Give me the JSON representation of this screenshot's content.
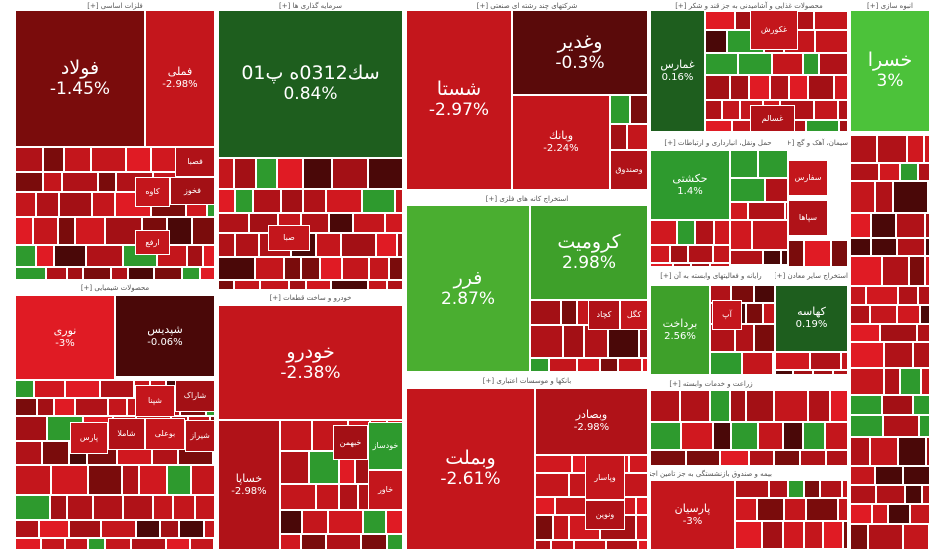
{
  "sectors": [
    {
      "header": "فلزات اساسی [+]",
      "tiles": [
        {
          "symbol": "فولاد",
          "change": "-1.45%"
        },
        {
          "symbol": "فملی",
          "change": "-2.98%"
        },
        {
          "symbol": "فصبا"
        },
        {
          "symbol": "کاوه"
        },
        {
          "symbol": "فخوز"
        },
        {
          "symbol": "ارفع"
        }
      ]
    },
    {
      "header": "محصولات شیمیایی [+]",
      "tiles": [
        {
          "symbol": "نوری",
          "change": "-3%"
        },
        {
          "symbol": "شپدیس",
          "change": "-0.06%"
        },
        {
          "symbol": "شاراک"
        },
        {
          "symbol": "شپنا"
        },
        {
          "symbol": "بوعلی"
        },
        {
          "symbol": "شیراز"
        },
        {
          "symbol": "پارس"
        },
        {
          "symbol": "شاملا"
        }
      ]
    },
    {
      "header": "سرمایه گذاری ها [+]",
      "tiles": [
        {
          "symbol": "سك0312ه پ01",
          "change": "0.84%"
        },
        {
          "symbol": "صبا"
        }
      ]
    },
    {
      "header": "خودرو و ساخت قطعات [+]",
      "tiles": [
        {
          "symbol": "خودرو",
          "change": "-2.38%"
        },
        {
          "symbol": "خساپا",
          "change": "-2.98%"
        },
        {
          "symbol": "خودساز"
        },
        {
          "symbol": "خاور"
        },
        {
          "symbol": "خبهمن"
        }
      ]
    },
    {
      "header": "شرکتهای چند رشته ای صنعتی [+]",
      "tiles": [
        {
          "symbol": "شستا",
          "change": "-2.97%"
        },
        {
          "symbol": "وغدیر",
          "change": "-0.3%"
        },
        {
          "symbol": "وبانك",
          "change": "-2.24%"
        },
        {
          "symbol": "وصندوق"
        }
      ]
    },
    {
      "header": "استخراج کانه های فلزی [+]",
      "tiles": [
        {
          "symbol": "فرر",
          "change": "2.87%"
        },
        {
          "symbol": "کرومیت",
          "change": "2.98%"
        },
        {
          "symbol": "کگل"
        },
        {
          "symbol": "کچاد"
        }
      ]
    },
    {
      "header": "بانکها و موسسات اعتباری [+]",
      "tiles": [
        {
          "symbol": "وبملت",
          "change": "-2.61%"
        },
        {
          "symbol": "وبصادر",
          "change": "-2.98%"
        },
        {
          "symbol": "وپاسار"
        },
        {
          "symbol": "ونوین"
        }
      ]
    },
    {
      "header": "محصولات غذایی و آشامیدنی به جز قند و شکر [+]",
      "tiles": [
        {
          "symbol": "غمارس",
          "change": "0.16%"
        },
        {
          "symbol": "غکورش"
        },
        {
          "symbol": "غسالم"
        }
      ]
    },
    {
      "header": "حمل ونقل، انبارداری و ارتباطات [+]",
      "tiles": [
        {
          "symbol": "حکشتی",
          "change": "1.4%"
        }
      ]
    },
    {
      "header": "رایانه و فعالیتهای وابسته به آن [+]",
      "tiles": [
        {
          "symbol": "برداخت",
          "change": "2.56%"
        },
        {
          "symbol": "آپ"
        }
      ]
    },
    {
      "header": "استخراج سایر معادن [+]",
      "tiles": [
        {
          "symbol": "کهاسه",
          "change": "0.19%"
        }
      ]
    },
    {
      "header": "زراعت و خدمات وابسته [+]",
      "tiles": []
    },
    {
      "header": "بیمه و صندوق بازنشستگی به جز تامین اجتماعی [+]",
      "tiles": [
        {
          "symbol": "پارسیان",
          "change": "-3%"
        }
      ]
    },
    {
      "header": "سیمان، آهک و گچ [+]",
      "tiles": [
        {
          "symbol": "سفارس"
        },
        {
          "symbol": "سپاها"
        }
      ]
    },
    {
      "header": "انبوه سازی [+]",
      "tiles": [
        {
          "symbol": "خسرا",
          "change": "3%"
        }
      ]
    }
  ]
}
